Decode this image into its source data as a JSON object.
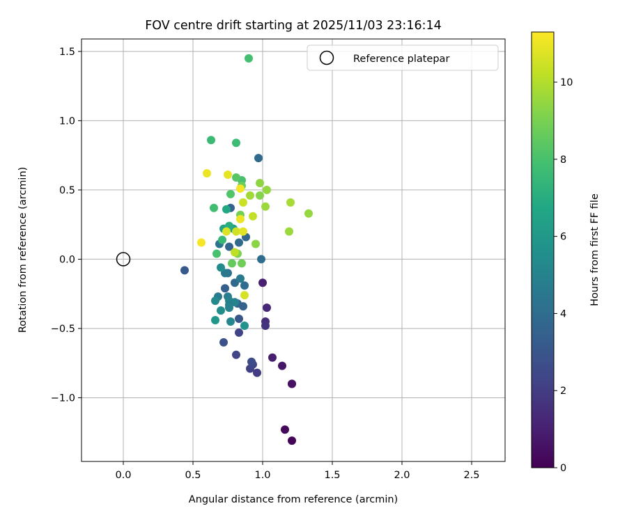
{
  "chart_data": {
    "type": "scatter",
    "title": "FOV centre drift starting at 2025/11/03 23:16:14",
    "xlabel": "Angular distance from reference (arcmin)",
    "ylabel": "Rotation from reference (arcmin)",
    "xlim": [
      -0.3,
      2.74
    ],
    "ylim": [
      -1.46,
      1.59
    ],
    "xticks": [
      0.0,
      0.5,
      1.0,
      1.5,
      2.0,
      2.5
    ],
    "yticks": [
      -1.0,
      -0.5,
      0.0,
      0.5,
      1.0,
      1.5
    ],
    "xtick_labels": [
      "0.0",
      "0.5",
      "1.0",
      "1.5",
      "2.0",
      "2.5"
    ],
    "ytick_labels": [
      "−1.0",
      "−0.5",
      "0.0",
      "0.5",
      "1.0",
      "1.5"
    ],
    "grid": true,
    "legend": {
      "label": "Reference platepar",
      "position": "top-right"
    },
    "reference_point": {
      "x": 0.0,
      "y": 0.0
    },
    "colorbar": {
      "label": "Hours from first FF file",
      "range": [
        0,
        11.3
      ],
      "ticks": [
        0,
        2,
        4,
        6,
        8,
        10
      ],
      "tick_labels": [
        "0",
        "2",
        "4",
        "6",
        "8",
        "10"
      ],
      "colormap": "viridis"
    },
    "points": [
      {
        "x": 1.21,
        "y": -1.31,
        "hours": 0.1
      },
      {
        "x": 1.16,
        "y": -1.23,
        "hours": 0.2
      },
      {
        "x": 1.21,
        "y": -0.9,
        "hours": 0.4
      },
      {
        "x": 1.21,
        "y": -0.9,
        "hours": 0.5
      },
      {
        "x": 1.14,
        "y": -0.77,
        "hours": 0.7
      },
      {
        "x": 1.07,
        "y": -0.71,
        "hours": 0.9
      },
      {
        "x": 1.0,
        "y": -0.17,
        "hours": 1.0
      },
      {
        "x": 1.03,
        "y": -0.35,
        "hours": 1.3
      },
      {
        "x": 1.02,
        "y": -0.45,
        "hours": 1.5
      },
      {
        "x": 1.02,
        "y": -0.48,
        "hours": 1.7
      },
      {
        "x": 0.96,
        "y": -0.82,
        "hours": 2.0
      },
      {
        "x": 0.91,
        "y": -0.79,
        "hours": 2.2
      },
      {
        "x": 0.93,
        "y": -0.76,
        "hours": 2.4
      },
      {
        "x": 0.92,
        "y": -0.74,
        "hours": 2.6
      },
      {
        "x": 0.81,
        "y": -0.69,
        "hours": 2.3
      },
      {
        "x": 0.83,
        "y": -0.53,
        "hours": 2.3
      },
      {
        "x": 0.72,
        "y": -0.6,
        "hours": 2.8
      },
      {
        "x": 0.83,
        "y": -0.43,
        "hours": 3.0
      },
      {
        "x": 0.44,
        "y": -0.08,
        "hours": 3.2
      },
      {
        "x": 0.73,
        "y": -0.21,
        "hours": 3.4
      },
      {
        "x": 0.82,
        "y": -0.32,
        "hours": 3.6
      },
      {
        "x": 0.86,
        "y": -0.34,
        "hours": 3.5
      },
      {
        "x": 0.8,
        "y": -0.17,
        "hours": 3.8
      },
      {
        "x": 0.87,
        "y": -0.19,
        "hours": 4.0
      },
      {
        "x": 0.97,
        "y": 0.73,
        "hours": 3.9
      },
      {
        "x": 0.99,
        "y": 0.0,
        "hours": 4.0
      },
      {
        "x": 0.88,
        "y": 0.16,
        "hours": 3.7
      },
      {
        "x": 0.83,
        "y": 0.12,
        "hours": 3.9
      },
      {
        "x": 0.76,
        "y": 0.09,
        "hours": 3.6
      },
      {
        "x": 0.77,
        "y": 0.37,
        "hours": 3.5
      },
      {
        "x": 0.69,
        "y": 0.11,
        "hours": 4.3
      },
      {
        "x": 0.75,
        "y": -0.1,
        "hours": 4.2
      },
      {
        "x": 0.73,
        "y": -0.1,
        "hours": 4.5
      },
      {
        "x": 0.84,
        "y": -0.14,
        "hours": 4.6
      },
      {
        "x": 0.68,
        "y": -0.27,
        "hours": 4.6
      },
      {
        "x": 0.75,
        "y": -0.27,
        "hours": 4.8
      },
      {
        "x": 0.76,
        "y": -0.3,
        "hours": 5.0
      },
      {
        "x": 0.8,
        "y": -0.31,
        "hours": 5.0
      },
      {
        "x": 0.76,
        "y": -0.33,
        "hours": 4.9
      },
      {
        "x": 0.76,
        "y": -0.35,
        "hours": 5.0
      },
      {
        "x": 0.66,
        "y": -0.3,
        "hours": 5.3
      },
      {
        "x": 0.7,
        "y": -0.37,
        "hours": 5.5
      },
      {
        "x": 0.77,
        "y": -0.45,
        "hours": 5.2
      },
      {
        "x": 0.87,
        "y": -0.48,
        "hours": 5.7
      },
      {
        "x": 0.66,
        "y": -0.44,
        "hours": 5.9
      },
      {
        "x": 0.7,
        "y": -0.06,
        "hours": 5.4
      },
      {
        "x": 0.79,
        "y": 0.22,
        "hours": 6.3
      },
      {
        "x": 0.72,
        "y": 0.22,
        "hours": 6.5
      },
      {
        "x": 0.74,
        "y": 0.36,
        "hours": 6.8
      },
      {
        "x": 0.76,
        "y": 0.24,
        "hours": 7.0
      },
      {
        "x": 0.71,
        "y": 0.14,
        "hours": 7.5
      },
      {
        "x": 0.65,
        "y": 0.37,
        "hours": 7.8
      },
      {
        "x": 0.63,
        "y": 0.86,
        "hours": 7.6
      },
      {
        "x": 0.81,
        "y": 0.84,
        "hours": 7.7
      },
      {
        "x": 0.9,
        "y": 1.45,
        "hours": 7.9
      },
      {
        "x": 0.67,
        "y": 0.04,
        "hours": 8.0
      },
      {
        "x": 0.85,
        "y": 0.57,
        "hours": 8.0
      },
      {
        "x": 0.77,
        "y": 0.47,
        "hours": 8.2
      },
      {
        "x": 0.81,
        "y": 0.59,
        "hours": 8.3
      },
      {
        "x": 0.78,
        "y": -0.03,
        "hours": 8.6
      },
      {
        "x": 0.85,
        "y": -0.03,
        "hours": 8.8
      },
      {
        "x": 0.85,
        "y": 0.53,
        "hours": 8.7
      },
      {
        "x": 0.84,
        "y": 0.32,
        "hours": 8.9
      },
      {
        "x": 0.82,
        "y": 0.04,
        "hours": 9.1
      },
      {
        "x": 0.95,
        "y": 0.11,
        "hours": 9.3
      },
      {
        "x": 0.98,
        "y": 0.46,
        "hours": 9.2
      },
      {
        "x": 0.98,
        "y": 0.55,
        "hours": 9.4
      },
      {
        "x": 1.03,
        "y": 0.5,
        "hours": 9.5
      },
      {
        "x": 1.02,
        "y": 0.38,
        "hours": 9.6
      },
      {
        "x": 0.91,
        "y": 0.46,
        "hours": 9.7
      },
      {
        "x": 1.2,
        "y": 0.41,
        "hours": 9.8
      },
      {
        "x": 1.19,
        "y": 0.2,
        "hours": 9.6
      },
      {
        "x": 1.33,
        "y": 0.33,
        "hours": 9.5
      },
      {
        "x": 0.93,
        "y": 0.31,
        "hours": 10.3
      },
      {
        "x": 0.86,
        "y": 0.41,
        "hours": 10.4
      },
      {
        "x": 0.81,
        "y": 0.2,
        "hours": 10.5
      },
      {
        "x": 0.8,
        "y": 0.05,
        "hours": 10.2
      },
      {
        "x": 0.87,
        "y": -0.26,
        "hours": 10.6
      },
      {
        "x": 0.74,
        "y": 0.2,
        "hours": 10.7
      },
      {
        "x": 0.86,
        "y": 0.2,
        "hours": 10.8
      },
      {
        "x": 0.84,
        "y": 0.29,
        "hours": 11.0
      },
      {
        "x": 0.84,
        "y": 0.51,
        "hours": 11.1
      },
      {
        "x": 0.75,
        "y": 0.61,
        "hours": 10.9
      },
      {
        "x": 0.6,
        "y": 0.62,
        "hours": 11.0
      },
      {
        "x": 0.56,
        "y": 0.12,
        "hours": 11.2
      }
    ]
  }
}
